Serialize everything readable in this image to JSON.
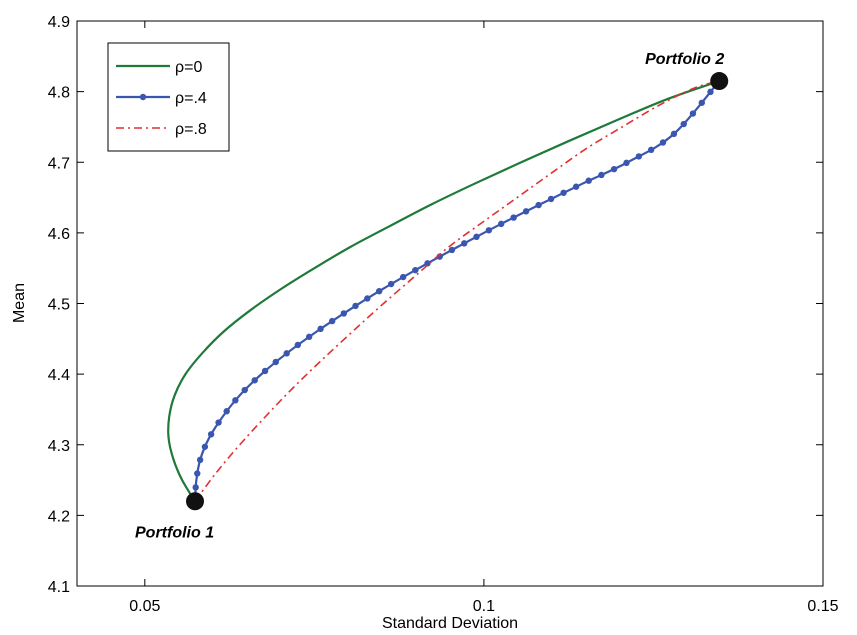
{
  "chart_data": {
    "type": "line",
    "xlabel": "Standard Deviation",
    "ylabel": "Mean",
    "xlim": [
      0.04,
      0.15
    ],
    "ylim": [
      4.1,
      4.9
    ],
    "xticks": [
      0.05,
      0.1,
      0.15
    ],
    "xtick_labels": [
      "0.05",
      "0.1",
      "0.15"
    ],
    "yticks": [
      4.1,
      4.2,
      4.3,
      4.4,
      4.5,
      4.6,
      4.7,
      4.8,
      4.9
    ],
    "ytick_labels": [
      "4.1",
      "4.2",
      "4.3",
      "4.4",
      "4.5",
      "4.6",
      "4.7",
      "4.8",
      "4.9"
    ],
    "grid": false,
    "legend_position": "top-left",
    "series": [
      {
        "name": "ρ=0",
        "color": "#1f7a3a",
        "style": "solid",
        "x": [
          0.0574,
          0.0555,
          0.0542,
          0.0535,
          0.0536,
          0.0544,
          0.056,
          0.0585,
          0.0616,
          0.0655,
          0.07,
          0.075,
          0.0803,
          0.0862,
          0.0922,
          0.0987,
          0.1055,
          0.1125,
          0.1197,
          0.1272,
          0.1347
        ],
        "y": [
          4.22,
          4.25,
          4.28,
          4.31,
          4.34,
          4.37,
          4.4,
          4.43,
          4.46,
          4.49,
          4.52,
          4.55,
          4.58,
          4.61,
          4.64,
          4.67,
          4.7,
          4.73,
          4.76,
          4.79,
          4.815
        ]
      },
      {
        "name": "ρ=.4",
        "color": "#3a56b0",
        "style": "solid-marker",
        "x": [
          0.0574,
          0.0576,
          0.0582,
          0.0595,
          0.0615,
          0.064,
          0.0672,
          0.071,
          0.0753,
          0.08,
          0.085,
          0.0904,
          0.0961,
          0.102,
          0.1082,
          0.1146,
          0.1212,
          0.128,
          0.1347
        ],
        "y": [
          4.22,
          4.25,
          4.28,
          4.31,
          4.34,
          4.37,
          4.4,
          4.43,
          4.46,
          4.49,
          4.52,
          4.55,
          4.58,
          4.61,
          4.64,
          4.67,
          4.7,
          4.74,
          4.815
        ]
      },
      {
        "name": "ρ=.8",
        "color": "#e03030",
        "style": "dash-dot",
        "x": [
          0.0574,
          0.0605,
          0.064,
          0.0678,
          0.0718,
          0.0761,
          0.0806,
          0.0852,
          0.09,
          0.0948,
          0.0998,
          0.1049,
          0.11,
          0.1152,
          0.1204,
          0.1257,
          0.131,
          0.1347
        ],
        "y": [
          4.22,
          4.26,
          4.3,
          4.34,
          4.38,
          4.42,
          4.46,
          4.5,
          4.54,
          4.58,
          4.615,
          4.65,
          4.685,
          4.72,
          4.75,
          4.78,
          4.805,
          4.815
        ]
      }
    ],
    "points": [
      {
        "label": "Portfolio 1",
        "x": 0.0574,
        "y": 4.22
      },
      {
        "label": "Portfolio 2",
        "x": 0.1347,
        "y": 4.815
      }
    ]
  }
}
